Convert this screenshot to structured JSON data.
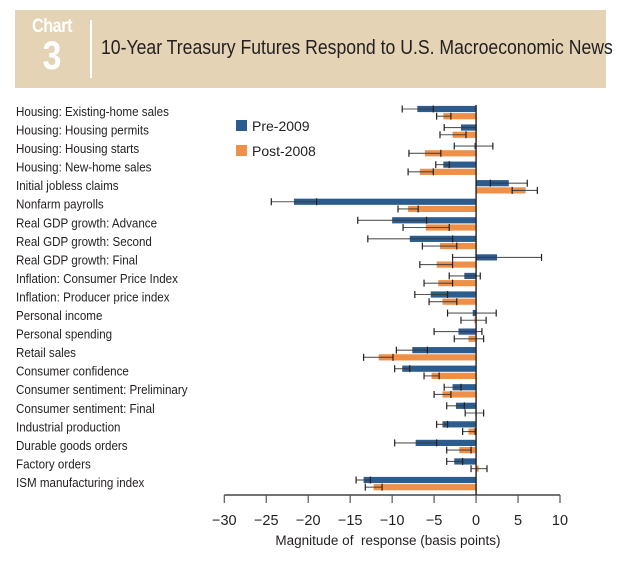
{
  "header": {
    "label": "Chart",
    "number": "3",
    "title": "10-Year Treasury Futures Respond to U.S. Macroeconomic News"
  },
  "chart_data": {
    "type": "bar",
    "orientation": "horizontal",
    "title": "10-Year Treasury Futures Respond to U.S. Macroeconomic News",
    "xlabel": "Magnitude of  response (basis points)",
    "ylabel": "",
    "xlim": [
      -30,
      10
    ],
    "xticks": [
      -30,
      -25,
      -20,
      -15,
      -10,
      -5,
      0,
      5,
      10
    ],
    "xtick_labels": [
      "−30",
      "−25",
      "−20",
      "−15",
      "−10",
      "−5",
      "0",
      "5",
      "10"
    ],
    "grid": false,
    "legend_position": "top-left",
    "categories": [
      "Housing: Existing-home sales",
      "Housing: Housing permits",
      "Housing: Housing starts",
      "Housing: New-home sales",
      "Initial jobless claims",
      "Nonfarm payrolls",
      "Real GDP growth: Advance",
      "Real GDP growth: Second",
      "Real GDP growth: Final",
      "Inflation: Consumer Price Index",
      "Inflation: Producer price index",
      "Personal income",
      "Personal spending",
      "Retail sales",
      "Consumer confidence",
      "Consumer sentiment: Preliminary",
      "Consumer sentiment: Final",
      "Industrial production",
      "Durable goods orders",
      "Factory orders",
      "ISM manufacturing index"
    ],
    "series": [
      {
        "name": "Pre-2009",
        "color": "#2c5b8e",
        "values": [
          -7.0,
          -1.8,
          -0.2,
          -3.9,
          3.9,
          -21.7,
          -10.0,
          -7.9,
          2.5,
          -1.4,
          -5.4,
          -0.4,
          -2.1,
          -7.6,
          -8.8,
          -2.8,
          -2.4,
          -4.0,
          -7.2,
          -2.6,
          -13.4
        ],
        "error_low": [
          -8.8,
          -3.8,
          -2.6,
          -4.8,
          1.7,
          -24.4,
          -14.1,
          -12.9,
          -2.8,
          -3.2,
          -7.3,
          -3.4,
          -5.0,
          -9.5,
          -9.7,
          -3.8,
          -3.5,
          -4.7,
          -9.7,
          -3.5,
          -14.3
        ],
        "error_high": [
          -5.1,
          0.0,
          2.0,
          -3.2,
          6.1,
          -19.0,
          -5.9,
          -2.8,
          7.8,
          0.5,
          -3.4,
          2.4,
          0.7,
          -5.8,
          -7.9,
          -1.8,
          -1.4,
          -3.4,
          -4.7,
          -1.6,
          -12.6
        ]
      },
      {
        "name": "Post-2008",
        "color": "#ef9048",
        "values": [
          -3.9,
          -2.8,
          -6.1,
          -6.7,
          5.9,
          -8.1,
          -6.0,
          -4.3,
          -4.7,
          -4.5,
          -4.0,
          -0.2,
          -0.9,
          -11.6,
          -5.3,
          -4.0,
          -0.1,
          -0.9,
          -2.0,
          0.3,
          -12.2
        ],
        "error_low": [
          -4.7,
          -4.3,
          -8.0,
          -8.1,
          4.3,
          -9.3,
          -8.7,
          -6.4,
          -6.7,
          -6.2,
          -5.6,
          -1.8,
          -2.6,
          -13.4,
          -6.2,
          -5.0,
          -1.3,
          -1.6,
          -3.5,
          -0.6,
          -13.2
        ],
        "error_high": [
          -3.0,
          -1.2,
          -4.2,
          -5.1,
          7.3,
          -6.9,
          -3.2,
          -2.3,
          -2.8,
          -2.8,
          -2.3,
          1.2,
          0.9,
          -9.9,
          -4.4,
          -3.0,
          0.9,
          -0.1,
          -0.6,
          1.3,
          -11.2
        ]
      }
    ]
  }
}
